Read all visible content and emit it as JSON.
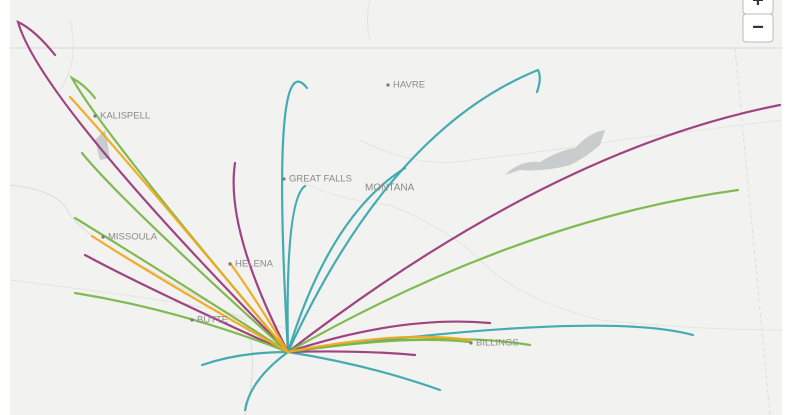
{
  "map": {
    "places": [
      "HAVRE",
      "KALISPELL",
      "GREAT FALLS",
      "MONTANA",
      "MISSOULA",
      "HELENA",
      "BUTTE",
      "BILLINGS"
    ]
  },
  "controls": {
    "zoom_in": "+",
    "zoom_out": "−"
  }
}
